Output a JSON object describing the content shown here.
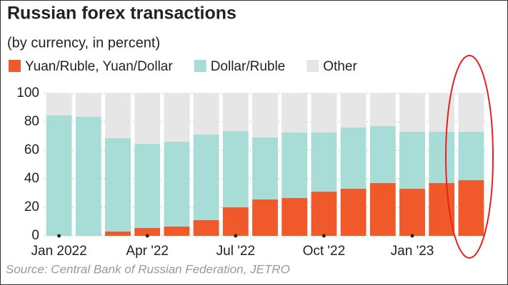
{
  "chart_data": {
    "type": "stacked-bar",
    "title": "Russian forex transactions",
    "subtitle": "(by currency, in percent)",
    "source": "Source: Central Bank of Russian Federation, JETRO",
    "categories": [
      "Jan 2022",
      null,
      null,
      "Apr '22",
      null,
      null,
      "Jul '22",
      null,
      null,
      "Oct '22",
      null,
      null,
      "Jan '23",
      null,
      null
    ],
    "series": [
      {
        "name": "Yuan/Ruble, Yuan/Dollar",
        "color": "#f0592a",
        "values": [
          0,
          0,
          3,
          5.5,
          6.5,
          11,
          20,
          25.5,
          26.5,
          31,
          33,
          37,
          33,
          37,
          39
        ]
      },
      {
        "name": "Dollar/Ruble",
        "color": "#a8dcd7",
        "values": [
          84.5,
          83.5,
          65.5,
          59,
          59.5,
          60,
          53.5,
          43.5,
          46,
          41.5,
          43,
          40,
          40,
          36,
          34
        ]
      },
      {
        "name": "Other",
        "color": "#e6e6e6",
        "values": [
          15.5,
          16.5,
          31.5,
          35.5,
          34,
          29,
          26.5,
          31,
          27.5,
          27.5,
          24,
          23,
          27,
          27,
          27
        ]
      }
    ],
    "ylim": [
      0,
      100
    ],
    "yticks": [
      0,
      20,
      40,
      60,
      80,
      100
    ],
    "grid": true
  }
}
